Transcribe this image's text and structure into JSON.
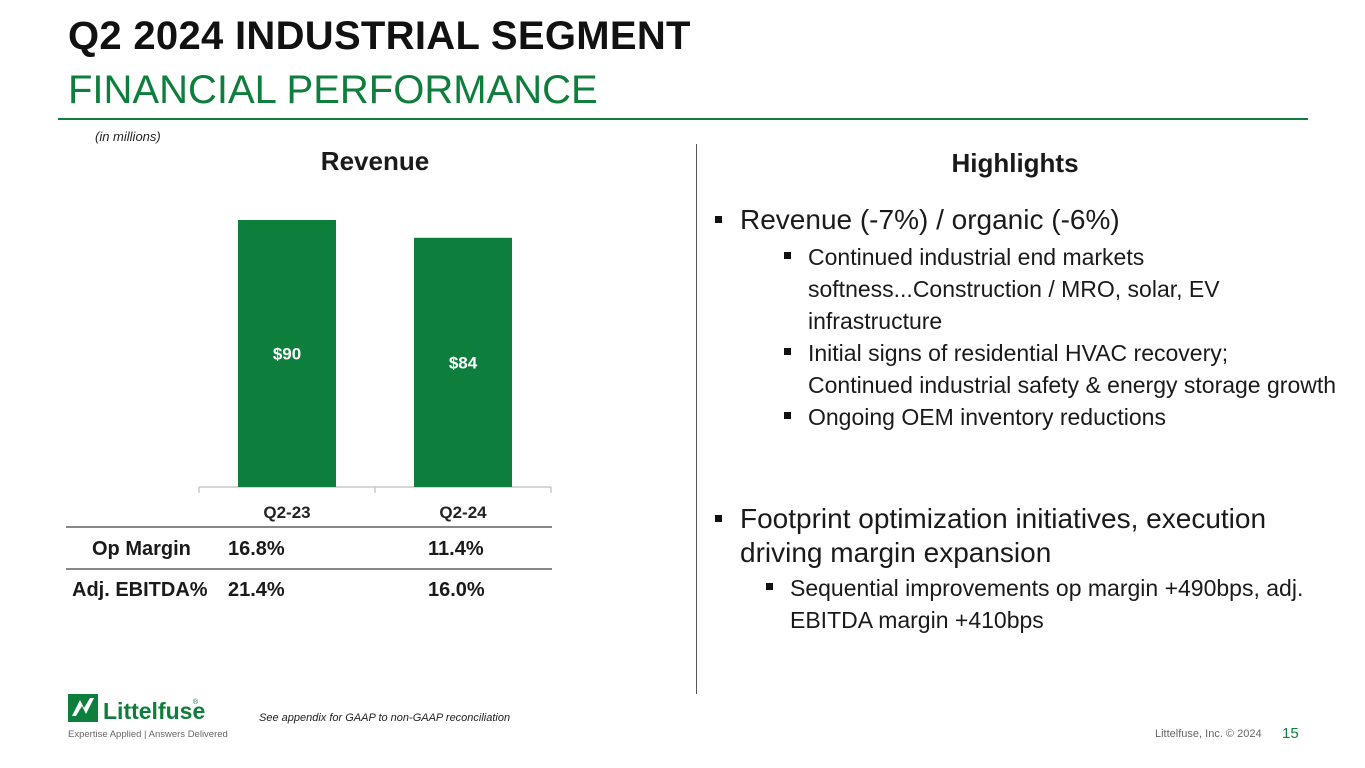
{
  "header": {
    "title": "Q2 2024 INDUSTRIAL SEGMENT",
    "subtitle": "FINANCIAL PERFORMANCE",
    "units_note": "(in millions)"
  },
  "revenue_section": {
    "heading": "Revenue"
  },
  "chart_data": {
    "type": "bar",
    "title": "Revenue",
    "categories": [
      "Q2-23",
      "Q2-24"
    ],
    "values": [
      90,
      84
    ],
    "value_labels": [
      "$90",
      "$84"
    ],
    "unit": "millions",
    "ylim": [
      0,
      90
    ],
    "color": "#0e7e3c"
  },
  "metrics_table": {
    "rows": [
      {
        "label": "Op Margin",
        "values": [
          "16.8%",
          "11.4%"
        ]
      },
      {
        "label": "Adj. EBITDA%",
        "values": [
          "21.4%",
          "16.0%"
        ]
      }
    ]
  },
  "highlights": {
    "heading": "Highlights",
    "group1": {
      "text": "Revenue (-7%) / organic (-6%)",
      "sub": [
        "Continued industrial end markets softness...Construction / MRO, solar, EV infrastructure",
        "Initial signs of residential HVAC recovery; Continued industrial safety & energy storage growth",
        "Ongoing OEM inventory reductions"
      ]
    },
    "group2": {
      "text": "Footprint optimization initiatives, execution driving margin expansion",
      "sub": [
        "Sequential improvements op margin +490bps, adj. EBITDA margin +410bps"
      ]
    }
  },
  "footer": {
    "footnote": "See appendix for GAAP to non-GAAP reconciliation",
    "copyright": "Littelfuse, Inc. © 2024",
    "page_number": "15",
    "logo_text": "Littelfuse",
    "logo_tagline": "Expertise Applied | Answers Delivered",
    "brand_color": "#0e7e3c"
  }
}
